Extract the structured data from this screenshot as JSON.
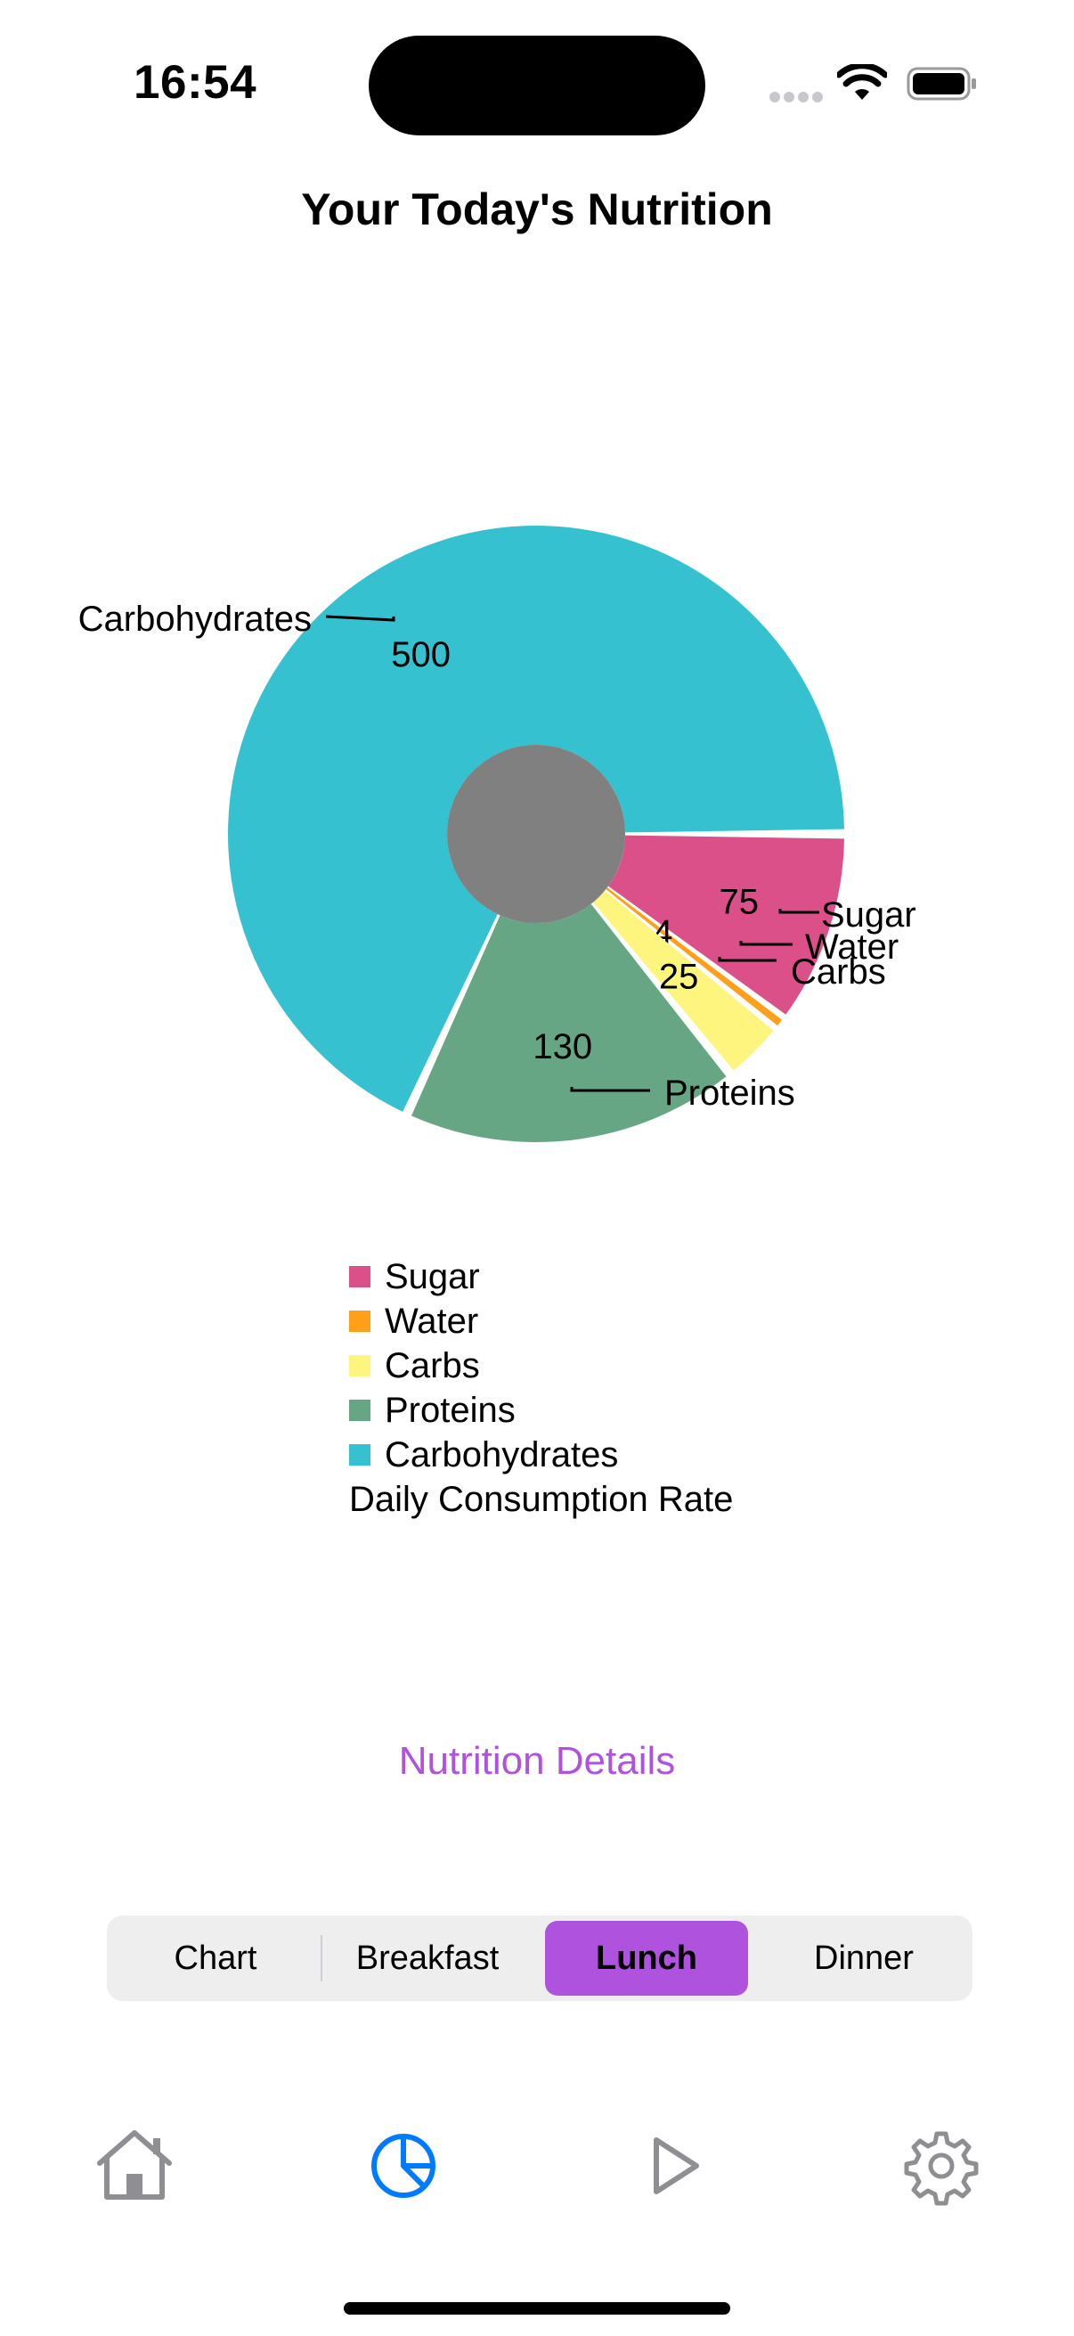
{
  "status_bar": {
    "time": "16:54"
  },
  "page": {
    "title": "Your Today's Nutrition"
  },
  "chart_data": {
    "type": "pie",
    "style": "donut with exploded slices and outside leader-line labels",
    "slices": [
      {
        "label": "Sugar",
        "value": 75,
        "color": "#db5089"
      },
      {
        "label": "Water",
        "value": 4,
        "color": "#ff9f1a"
      },
      {
        "label": "Carbs",
        "value": 25,
        "color": "#fdf57e"
      },
      {
        "label": "Proteins",
        "value": 130,
        "color": "#67a684"
      },
      {
        "label": "Carbohydrates",
        "value": 500,
        "color": "#35c1d0"
      }
    ],
    "center_color": "#808080",
    "legend_title": "Daily Consumption Rate",
    "legend_position": "bottom"
  },
  "links": {
    "nutrition_details": "Nutrition Details"
  },
  "segmented_control": {
    "options": [
      "Chart",
      "Breakfast",
      "Lunch",
      "Dinner"
    ],
    "selected": "Lunch"
  },
  "tab_bar": {
    "items": [
      {
        "icon": "house-icon",
        "selected": false
      },
      {
        "icon": "chart-pie-icon",
        "selected": true
      },
      {
        "icon": "play-icon",
        "selected": false
      },
      {
        "icon": "gear-icon",
        "selected": false
      }
    ]
  },
  "colors": {
    "accent": "#af52de",
    "tab_selected": "#007aff",
    "tab_unselected": "#8e8e93"
  }
}
